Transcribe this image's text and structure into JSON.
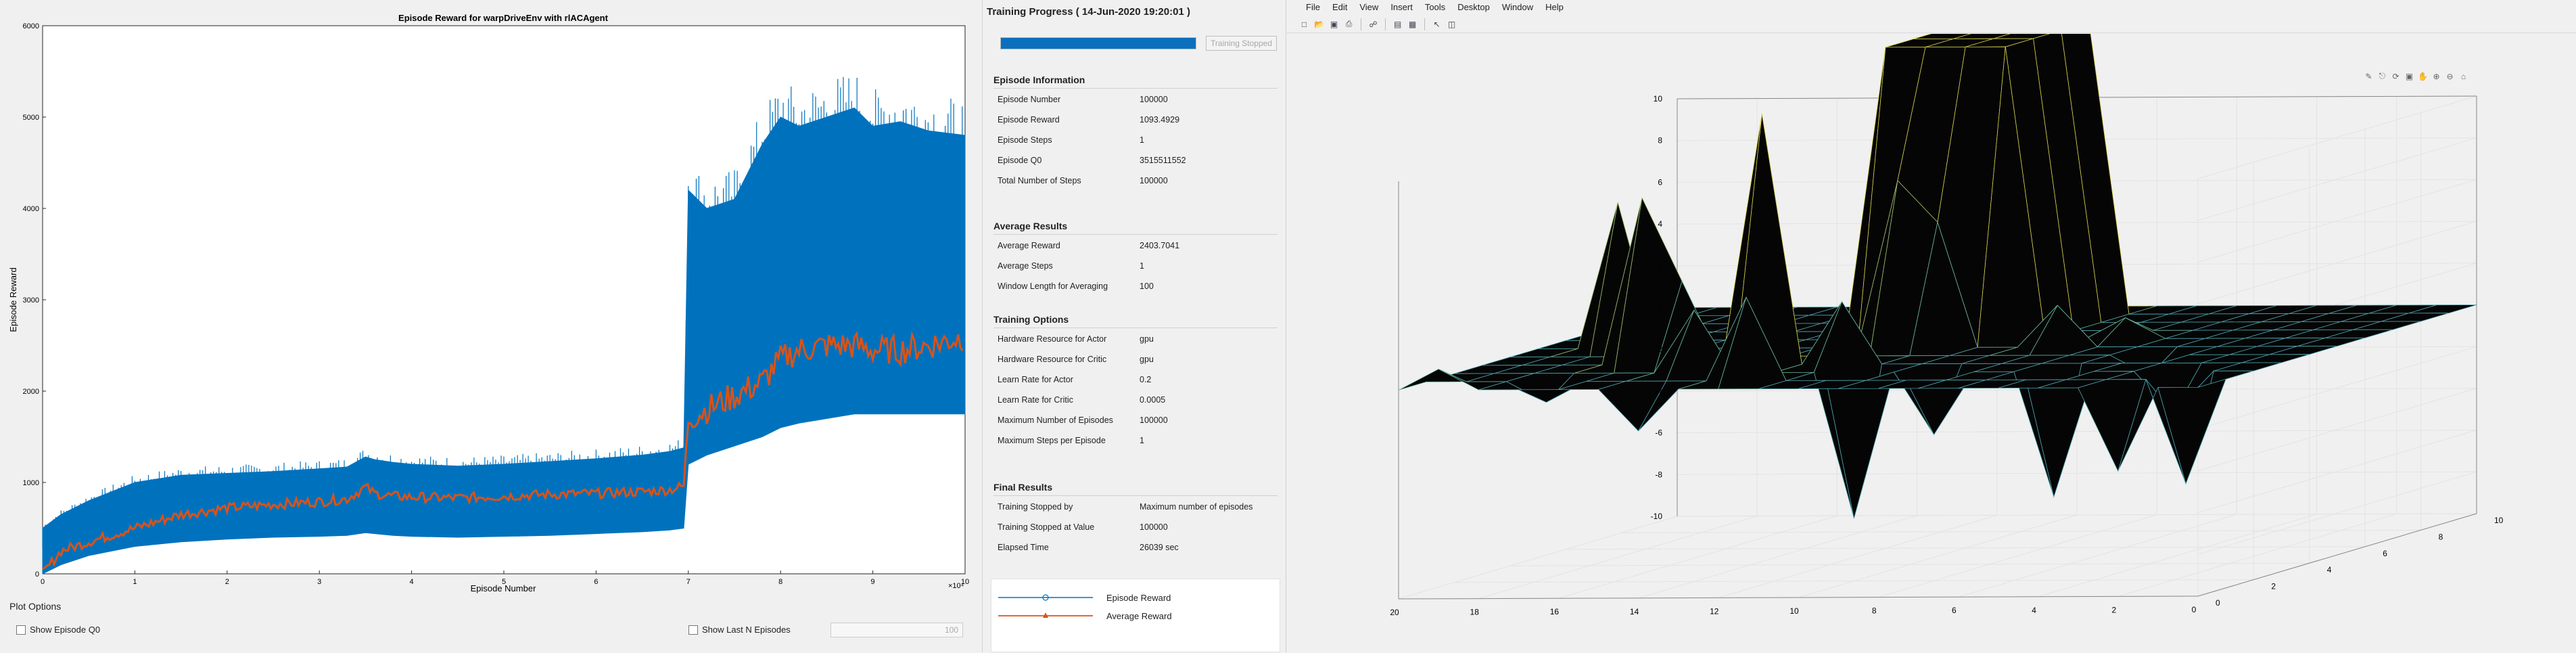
{
  "plot": {
    "title": "Episode Reward for warpDriveEnv with rlACAgent",
    "xlabel": "Episode Number",
    "ylabel": "Episode Reward",
    "x_ticks": [
      "0",
      "1",
      "2",
      "3",
      "4",
      "5",
      "6",
      "7",
      "8",
      "9",
      "10"
    ],
    "x_multiplier": "×10⁴",
    "y_ticks": [
      "0",
      "1000",
      "2000",
      "3000",
      "4000",
      "5000",
      "6000"
    ],
    "colors": {
      "episode_reward": "#0072bd",
      "average_reward": "#d95319"
    }
  },
  "chart_data": {
    "type": "line",
    "title": "Episode Reward for warpDriveEnv with rlACAgent",
    "xlabel": "Episode Number",
    "ylabel": "Episode Reward",
    "xlim": [
      0,
      100000
    ],
    "ylim": [
      0,
      6000
    ],
    "x": [
      0,
      2000,
      5000,
      10000,
      15000,
      20000,
      25000,
      30000,
      33000,
      35000,
      36000,
      38000,
      40000,
      45000,
      50000,
      55000,
      60000,
      65000,
      68000,
      69500,
      70000,
      72000,
      75000,
      78000,
      80000,
      82000,
      85000,
      88000,
      90000,
      93000,
      96000,
      100000
    ],
    "series": [
      {
        "name": "Episode Reward",
        "values_upper": [
          500,
          650,
          800,
          1000,
          1080,
          1100,
          1120,
          1150,
          1170,
          1280,
          1250,
          1220,
          1200,
          1180,
          1200,
          1230,
          1260,
          1300,
          1340,
          1380,
          4200,
          4000,
          4100,
          4700,
          5000,
          4900,
          5000,
          5100,
          4900,
          4950,
          4850,
          4800
        ],
        "values_lower": [
          0,
          100,
          200,
          300,
          350,
          380,
          400,
          410,
          420,
          450,
          440,
          420,
          410,
          400,
          410,
          420,
          440,
          460,
          480,
          500,
          1200,
          1300,
          1400,
          1500,
          1600,
          1650,
          1700,
          1750,
          1750,
          1750,
          1750,
          1750
        ]
      },
      {
        "name": "Average Reward",
        "values": [
          0,
          250,
          350,
          500,
          650,
          720,
          760,
          790,
          820,
          950,
          880,
          850,
          840,
          830,
          850,
          870,
          880,
          900,
          920,
          960,
          1700,
          1800,
          1950,
          2100,
          2350,
          2450,
          2500,
          2500,
          2450,
          2450,
          2500,
          2600
        ]
      }
    ],
    "legend": [
      "Episode Reward",
      "Average Reward"
    ]
  },
  "plot_options": {
    "title": "Plot Options",
    "show_q0": "Show Episode Q0",
    "show_last_n": "Show Last N Episodes",
    "last_n_value": "100"
  },
  "progress": {
    "title": "Training Progress ( 14-Jun-2020 19:20:01 )",
    "fraction": 1.0,
    "status_button": "Training Stopped"
  },
  "sections": {
    "episode_info": {
      "title": "Episode Information",
      "rows": [
        {
          "label": "Episode Number",
          "value": "100000"
        },
        {
          "label": "Episode Reward",
          "value": "1093.4929"
        },
        {
          "label": "Episode Steps",
          "value": "1"
        },
        {
          "label": "Episode Q0",
          "value": "3515511552"
        },
        {
          "label": "Total Number of Steps",
          "value": "100000"
        }
      ]
    },
    "average_results": {
      "title": "Average Results",
      "rows": [
        {
          "label": "Average Reward",
          "value": "2403.7041"
        },
        {
          "label": "Average Steps",
          "value": "1"
        },
        {
          "label": "Window Length for Averaging",
          "value": "100"
        }
      ]
    },
    "training_options": {
      "title": "Training Options",
      "rows": [
        {
          "label": "Hardware Resource for Actor",
          "value": "gpu"
        },
        {
          "label": "Hardware Resource for Critic",
          "value": "gpu"
        },
        {
          "label": "Learn Rate for Actor",
          "value": "0.2"
        },
        {
          "label": "Learn Rate for Critic",
          "value": "0.0005"
        },
        {
          "label": "Maximum Number of Episodes",
          "value": "100000"
        },
        {
          "label": "Maximum Steps per Episode",
          "value": "1"
        }
      ]
    },
    "final_results": {
      "title": "Final Results",
      "rows": [
        {
          "label": "Training Stopped by",
          "value": "Maximum number of episodes"
        },
        {
          "label": "Training Stopped at Value",
          "value": "100000"
        },
        {
          "label": "Elapsed Time",
          "value": "26039 sec"
        }
      ]
    }
  },
  "legend": {
    "episode_reward": "Episode Reward",
    "average_reward": "Average Reward"
  },
  "figure": {
    "menu": [
      "File",
      "Edit",
      "View",
      "Insert",
      "Tools",
      "Desktop",
      "Window",
      "Help"
    ],
    "toolbar_icons": [
      "new-figure-icon",
      "open-icon",
      "save-icon",
      "print-icon",
      "link-icon",
      "colorbar-icon",
      "legend-icon",
      "pointer-icon",
      "property-editor-icon"
    ],
    "axes_toolbar_icons": [
      "brush-icon",
      "datatip-icon",
      "rotate-icon",
      "restore-view-icon",
      "pan-icon",
      "zoom-in-icon",
      "zoom-out-icon",
      "home-icon"
    ],
    "z_ticks": [
      "10",
      "8",
      "6",
      "4",
      "2",
      "0",
      "-2",
      "-4",
      "-6",
      "-8",
      "-10"
    ],
    "x_ticks": [
      "20",
      "18",
      "16",
      "14",
      "12",
      "10",
      "8",
      "6",
      "4",
      "2",
      "0"
    ],
    "y_ticks": [
      "0",
      "2",
      "4",
      "6",
      "8",
      "10"
    ]
  }
}
